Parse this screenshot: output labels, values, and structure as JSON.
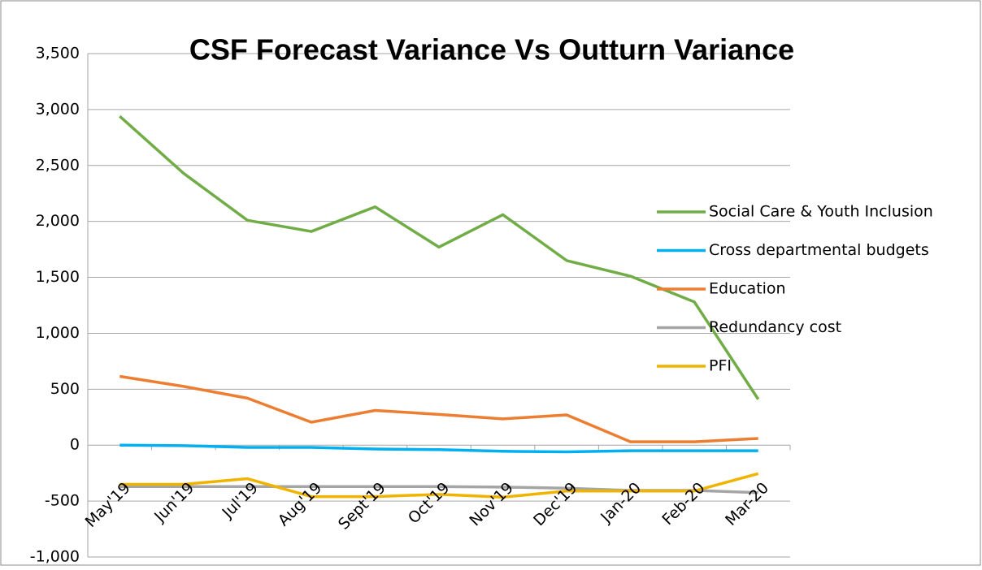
{
  "chart_data": {
    "type": "line",
    "title": "CSF Forecast Variance Vs Outturn Variance",
    "categories": [
      "May'19",
      "Jun'19",
      "Jul'19",
      "Aug'19",
      "Sept'19",
      "Oct'19",
      "Nov'19",
      "Dec'19",
      "Jan-20",
      "Feb-20",
      "Mar-20"
    ],
    "series": [
      {
        "name": "Social Care & Youth Inclusion",
        "color": "#70ad47",
        "values": [
          2940,
          2430,
          2010,
          1910,
          2130,
          1770,
          2060,
          1650,
          1510,
          1280,
          410
        ]
      },
      {
        "name": "Cross departmental budgets",
        "color": "#00b0f0",
        "values": [
          0,
          -5,
          -20,
          -20,
          -35,
          -40,
          -55,
          -60,
          -50,
          -50,
          -50
        ]
      },
      {
        "name": "Education",
        "color": "#ed7d31",
        "values": [
          615,
          525,
          420,
          205,
          310,
          275,
          235,
          270,
          30,
          30,
          60
        ]
      },
      {
        "name": "Redundancy cost",
        "color": "#a5a5a5",
        "values": [
          -370,
          -370,
          -370,
          -370,
          -370,
          -370,
          -375,
          -385,
          -405,
          -405,
          -425
        ]
      },
      {
        "name": "PFI",
        "color": "#f0b400",
        "values": [
          -350,
          -350,
          -300,
          -460,
          -460,
          -440,
          -465,
          -410,
          -410,
          -410,
          -255
        ]
      }
    ],
    "ylim": [
      -1000,
      3500
    ],
    "yticks": [
      {
        "value": -1000,
        "label": "-1,000"
      },
      -500,
      0,
      500,
      {
        "value": 1000,
        "label": "1,000"
      },
      {
        "value": 1500,
        "label": "1,500"
      },
      {
        "value": 2000,
        "label": "2,000"
      },
      {
        "value": 2500,
        "label": "2,500"
      },
      {
        "value": 3000,
        "label": "3,000"
      },
      {
        "value": 3500,
        "label": "3,500"
      }
    ],
    "grid": true,
    "legend": "right"
  }
}
